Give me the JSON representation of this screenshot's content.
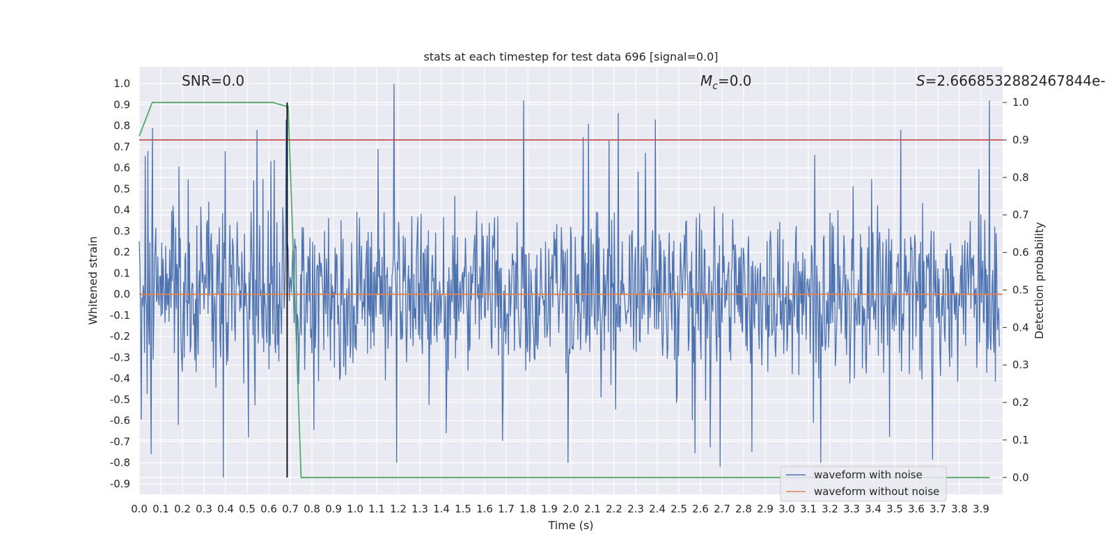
{
  "chart_data": {
    "type": "line",
    "title": "stats at each timestep for test data 696 [signal=0.0]",
    "xlabel": "Time (s)",
    "ylabel": "Whitened strain",
    "y2label": "Detection probability",
    "xlim": [
      0.0,
      4.0
    ],
    "ylim": [
      -0.95,
      1.08
    ],
    "y2lim": [
      -0.045,
      1.095
    ],
    "xticks": [
      0.0,
      0.1,
      0.2,
      0.3,
      0.4,
      0.5,
      0.6,
      0.7,
      0.8,
      0.9,
      1.0,
      1.1,
      1.2,
      1.3,
      1.4,
      1.5,
      1.6,
      1.7,
      1.8,
      1.9,
      2.0,
      2.1,
      2.2,
      2.3,
      2.4,
      2.5,
      2.6,
      2.7,
      2.8,
      2.9,
      3.0,
      3.1,
      3.2,
      3.3,
      3.4,
      3.5,
      3.6,
      3.7,
      3.8,
      3.9
    ],
    "yticks": [
      -0.9,
      -0.8,
      -0.7,
      -0.6,
      -0.5,
      -0.4,
      -0.3,
      -0.2,
      -0.1,
      0.0,
      0.1,
      0.2,
      0.3,
      0.4,
      0.5,
      0.6,
      0.7,
      0.8,
      0.9,
      1.0
    ],
    "y2ticks": [
      0.0,
      0.1,
      0.2,
      0.3,
      0.4,
      0.5,
      0.6,
      0.7,
      0.8,
      0.9,
      1.0
    ],
    "grid": true,
    "legend_position": "lower-right",
    "annotations": {
      "snr": "SNR=0.0",
      "mc": "=0.0",
      "mc_symbol": "M",
      "mc_sub": "c",
      "s": "=2.666853288246784​4e-",
      "s_symbol": "S"
    },
    "series": [
      {
        "name": "waveform with noise",
        "color": "#4c72b0",
        "axis": "left",
        "description": "noise-like whitened strain spanning roughly -0.87 to 1.0",
        "peaks": [
          {
            "x": 0.04,
            "y": 0.68
          },
          {
            "x": 0.06,
            "y": 0.79
          },
          {
            "x": 0.39,
            "y": -0.87
          },
          {
            "x": 0.4,
            "y": 0.68
          },
          {
            "x": 0.68,
            "y": 0.83
          },
          {
            "x": 1.18,
            "y": 1.0
          },
          {
            "x": 1.78,
            "y": 0.92
          },
          {
            "x": 2.08,
            "y": 0.81
          },
          {
            "x": 2.22,
            "y": 0.86
          },
          {
            "x": 2.39,
            "y": 0.83
          },
          {
            "x": 2.69,
            "y": -0.82
          },
          {
            "x": 3.94,
            "y": 0.92
          }
        ]
      },
      {
        "name": "waveform without noise",
        "color": "#dd8452",
        "axis": "left",
        "x": [
          0.0,
          4.0
        ],
        "y": [
          0.0,
          0.0
        ]
      },
      {
        "name": "",
        "color": "#55a868",
        "axis": "right",
        "x": [
          0.0,
          0.06,
          0.12,
          0.62,
          0.68,
          0.69,
          0.75,
          3.94
        ],
        "y": [
          0.91,
          1.0,
          1.0,
          1.0,
          0.99,
          0.99,
          0.0,
          0.0
        ]
      },
      {
        "name": "",
        "color": "#c44e52",
        "axis": "right",
        "x": [
          0.0,
          4.0
        ],
        "y": [
          0.9,
          0.9
        ]
      },
      {
        "name": "",
        "color": "#000000",
        "axis": "right",
        "x": [
          0.685,
          0.685
        ],
        "y": [
          0.0,
          1.0
        ]
      }
    ]
  }
}
